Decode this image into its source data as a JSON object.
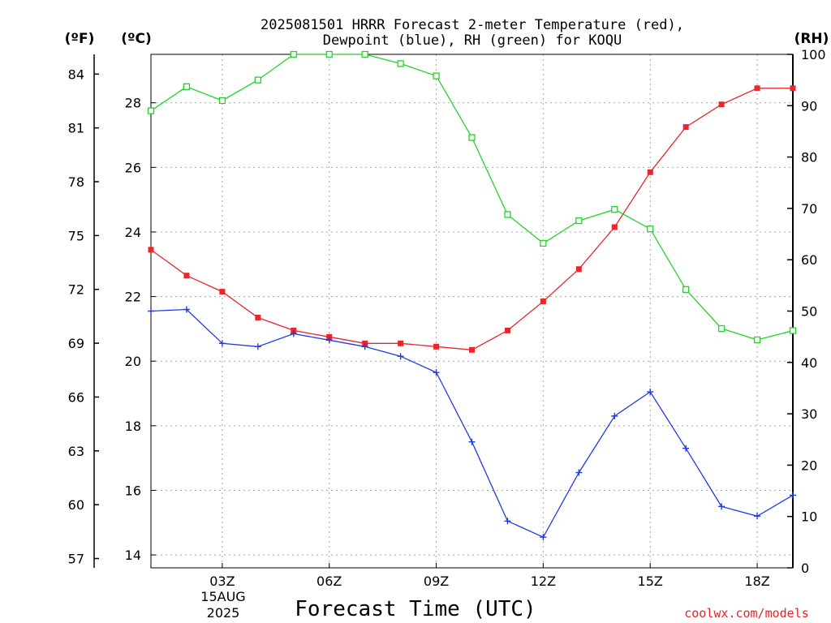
{
  "chart_data": {
    "type": "line",
    "title_line1": "2025081501 HRRR Forecast 2-meter Temperature (red),",
    "title_line2": "Dewpoint (blue), RH (green) for KOQU",
    "xlabel": "Forecast Time (UTC)",
    "credit": "coolwx.com/models",
    "date_labels": [
      "15AUG",
      "2025"
    ],
    "left_outer_unit": "(ºF)",
    "left_inner_unit": "(ºC)",
    "right_unit": "(RH)",
    "x_hours": [
      1,
      2,
      3,
      4,
      5,
      6,
      7,
      8,
      9,
      10,
      11,
      12,
      13,
      14,
      15,
      16,
      17,
      18,
      19
    ],
    "x_ticks": [
      {
        "hour": 3,
        "label": "03Z"
      },
      {
        "hour": 6,
        "label": "06Z"
      },
      {
        "hour": 9,
        "label": "09Z"
      },
      {
        "hour": 12,
        "label": "12Z"
      },
      {
        "hour": 15,
        "label": "15Z"
      },
      {
        "hour": 18,
        "label": "18Z"
      }
    ],
    "xlim": [
      1,
      19
    ],
    "celsius_ylim": [
      13.6,
      29.5
    ],
    "celsius_ticks": [
      "14",
      "16",
      "18",
      "20",
      "22",
      "24",
      "26",
      "28"
    ],
    "fahrenheit_ticks": [
      "57",
      "60",
      "63",
      "66",
      "69",
      "72",
      "75",
      "78",
      "81",
      "84"
    ],
    "rh_ylim": [
      0,
      100
    ],
    "rh_ticks": [
      "0",
      "10",
      "20",
      "30",
      "40",
      "50",
      "60",
      "70",
      "80",
      "90",
      "100"
    ],
    "grid": true,
    "series": [
      {
        "name": "Temperature",
        "color": "#e8262c",
        "marker": "filled-square",
        "axis": "celsius",
        "values": [
          23.45,
          22.65,
          22.15,
          21.35,
          20.95,
          20.75,
          20.55,
          20.55,
          20.45,
          20.35,
          20.95,
          21.85,
          22.85,
          24.15,
          25.85,
          27.25,
          27.95,
          28.45,
          28.45
        ]
      },
      {
        "name": "Dewpoint",
        "color": "#1f3be6",
        "marker": "plus",
        "axis": "celsius",
        "values": [
          21.55,
          21.6,
          20.55,
          20.45,
          20.85,
          20.65,
          20.45,
          20.15,
          19.65,
          17.5,
          15.05,
          14.55,
          16.55,
          18.3,
          19.05,
          17.3,
          15.5,
          15.2,
          15.85
        ]
      },
      {
        "name": "RH",
        "color": "#22d42a",
        "marker": "open-square",
        "axis": "rh",
        "values": [
          89,
          93.7,
          91,
          95,
          100,
          100,
          100,
          98.2,
          95.8,
          83.8,
          68.8,
          63.2,
          67.6,
          69.8,
          66,
          54.2,
          46.6,
          44.4,
          46.2
        ]
      }
    ]
  }
}
